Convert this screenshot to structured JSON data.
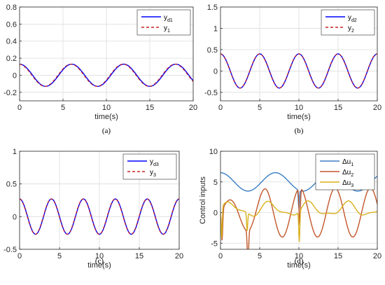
{
  "colors": {
    "reference": "#0000ff",
    "output": "#cc2020",
    "du1": "#3a7fc4",
    "du2": "#c2572a",
    "du3": "#d9b01c"
  },
  "chart_data": [
    {
      "type": "line",
      "caption": "(a)",
      "xlabel": "time(s)",
      "ylabel": "",
      "xlim": [
        0,
        20
      ],
      "ylim": [
        -0.3,
        0.8
      ],
      "xticks": [
        "0",
        "5",
        "10",
        "15",
        "20"
      ],
      "yticks": [
        "-0.2",
        "0",
        "0.2",
        "0.4",
        "0.6",
        "0.8"
      ],
      "grid": true,
      "legend_position": "top-right",
      "series": [
        {
          "name": "y_d1",
          "style": "solid",
          "amplitude": 0.13,
          "period": 6.0,
          "phase_deg": 90,
          "offset": 0
        },
        {
          "name": "y_1",
          "style": "dashed",
          "amplitude": 0.13,
          "period": 6.0,
          "phase_deg": 95,
          "offset": 0
        }
      ]
    },
    {
      "type": "line",
      "caption": "(b)",
      "xlabel": "time(s)",
      "ylabel": "",
      "xlim": [
        0,
        20
      ],
      "ylim": [
        -0.7,
        1.5
      ],
      "xticks": [
        "0",
        "5",
        "10",
        "15",
        "20"
      ],
      "yticks": [
        "-0.5",
        "0",
        "0.5",
        "1",
        "1.5"
      ],
      "grid": true,
      "legend_position": "top-right",
      "series": [
        {
          "name": "y_d2",
          "style": "solid",
          "amplitude": 0.4,
          "period": 5.0,
          "phase_deg": 90,
          "offset": 0
        },
        {
          "name": "y_2",
          "style": "dashed",
          "amplitude": 0.4,
          "period": 5.0,
          "phase_deg": 92,
          "offset": 0
        }
      ]
    },
    {
      "type": "line",
      "caption": "(c)",
      "xlabel": "time(s)",
      "ylabel": "",
      "xlim": [
        0,
        20
      ],
      "ylim": [
        -0.5,
        1.0
      ],
      "xticks": [
        "0",
        "5",
        "10",
        "15",
        "20"
      ],
      "yticks": [
        "-0.5",
        "0",
        "0.5",
        "1"
      ],
      "grid": true,
      "legend_position": "top-right",
      "series": [
        {
          "name": "y_d3",
          "style": "solid",
          "amplitude": 0.27,
          "period": 4.0,
          "phase_deg": 90,
          "offset": 0
        },
        {
          "name": "y_3",
          "style": "dashed",
          "amplitude": 0.27,
          "period": 4.0,
          "phase_deg": 93,
          "offset": 0
        }
      ]
    },
    {
      "type": "line",
      "caption": "(d)",
      "xlabel": "time(s)",
      "ylabel": "Control inputs",
      "xlim": [
        0,
        20
      ],
      "ylim": [
        -6,
        10
      ],
      "xticks": [
        "0",
        "5",
        "10",
        "15",
        "20"
      ],
      "yticks": [
        "-5",
        "0",
        "5",
        "10"
      ],
      "grid": true,
      "legend_position": "top-right",
      "series": [
        {
          "name": "Δu_1",
          "style": "solid",
          "amplitude": 1.5,
          "period": 7.0,
          "phase_deg": 90,
          "offset": 5
        },
        {
          "name": "Δu_2",
          "style": "solid",
          "amplitude": 4.0,
          "period": 4.5,
          "phase_deg": 0,
          "offset": 0
        },
        {
          "name": "Δu_3",
          "style": "solid",
          "amplitude": 1.0,
          "period": 5.0,
          "phase_deg": 0,
          "offset": 0.5
        }
      ]
    }
  ]
}
